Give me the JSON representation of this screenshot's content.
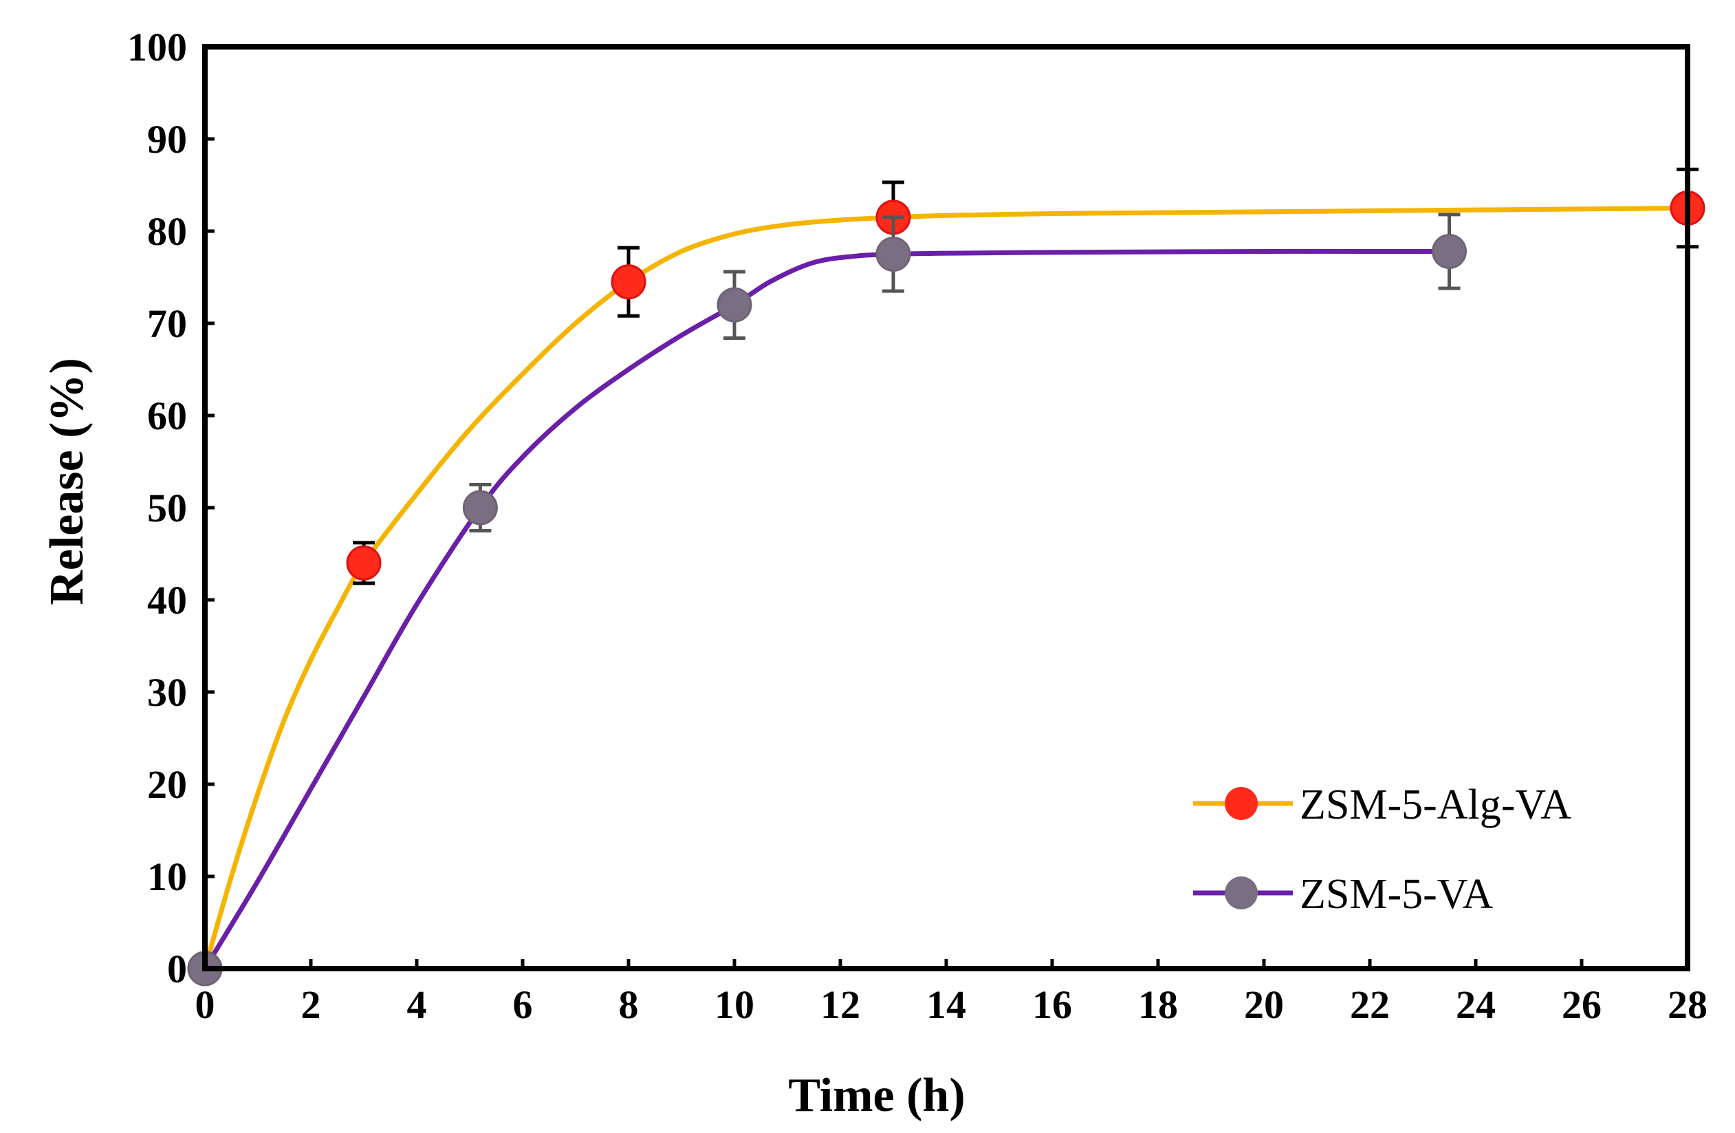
{
  "chart_data": {
    "type": "line",
    "title": "",
    "xlabel": "Time (h)",
    "ylabel": "Release (%)",
    "xlim": [
      0,
      28
    ],
    "ylim": [
      0,
      100
    ],
    "xticks": [
      0,
      2,
      4,
      6,
      8,
      10,
      12,
      14,
      16,
      18,
      20,
      22,
      24,
      26,
      28
    ],
    "yticks": [
      0,
      10,
      20,
      30,
      40,
      50,
      60,
      70,
      80,
      90,
      100
    ],
    "grid": false,
    "legend_position": "bottom-right",
    "series": [
      {
        "name": "ZSM-5-Alg-VA",
        "line_color": "#F5B400",
        "marker_color": "#FF2A1A",
        "x": [
          0,
          3,
          8,
          13,
          28
        ],
        "y": [
          0,
          44,
          74.5,
          81.5,
          82.5
        ],
        "error": [
          0,
          2.2,
          3.7,
          3.8,
          4.2
        ],
        "curve_x": [
          0,
          0.5,
          1,
          1.5,
          2,
          2.5,
          3,
          4,
          5,
          6,
          7,
          8,
          9,
          10,
          11,
          12,
          13,
          14,
          16,
          18,
          20,
          22,
          24,
          26,
          28
        ],
        "curve_y": [
          0,
          10,
          19,
          27,
          33.5,
          39,
          44,
          51.5,
          58.5,
          64.5,
          70,
          74.5,
          77.8,
          79.7,
          80.7,
          81.2,
          81.5,
          81.7,
          81.9,
          82.0,
          82.1,
          82.2,
          82.3,
          82.4,
          82.5
        ]
      },
      {
        "name": "ZSM-5-VA",
        "line_color": "#6A1FA8",
        "marker_color": "#7A6E82",
        "x": [
          0,
          5.2,
          10,
          13,
          23.5
        ],
        "y": [
          0,
          50,
          72,
          77.5,
          77.8
        ],
        "error": [
          0,
          2.5,
          3.6,
          4.0,
          4.0
        ],
        "curve_x": [
          0,
          1,
          2,
          3,
          4,
          5.2,
          6,
          7,
          8,
          9,
          10,
          10.7,
          11.5,
          12.3,
          13,
          14,
          16,
          18,
          20,
          22,
          23.5
        ],
        "curve_y": [
          0,
          9.5,
          19.5,
          29.5,
          39.5,
          50,
          55.5,
          60.8,
          65,
          68.7,
          72,
          74.6,
          76.6,
          77.3,
          77.5,
          77.6,
          77.7,
          77.75,
          77.8,
          77.8,
          77.8
        ]
      }
    ]
  }
}
